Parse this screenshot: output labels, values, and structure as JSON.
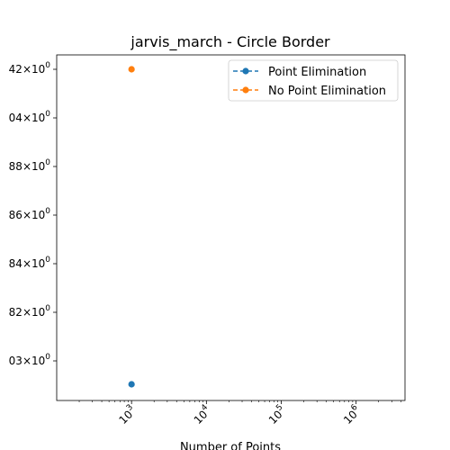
{
  "chart_data": {
    "type": "scatter",
    "title": "jarvis_march - Circle Border",
    "xlabel": "Number of Points",
    "ylabel": "",
    "x_scale": "log",
    "y_scale": "log",
    "xlim": [
      100,
      4500000
    ],
    "grid": false,
    "legend_position": "top-right",
    "x_ticks": [
      {
        "value": 1000,
        "base": "10",
        "exp": "3"
      },
      {
        "value": 10000,
        "base": "10",
        "exp": "4"
      },
      {
        "value": 100000,
        "base": "10",
        "exp": "5"
      },
      {
        "value": 1000000,
        "base": "10",
        "exp": "6"
      }
    ],
    "y_ticks": [
      {
        "label": "42",
        "mantissa_suffix": "×10",
        "exp": "0",
        "row": 0
      },
      {
        "label": "04",
        "mantissa_suffix": "×10",
        "exp": "0",
        "row": 1
      },
      {
        "label": "88",
        "mantissa_suffix": "×10",
        "exp": "0",
        "row": 2
      },
      {
        "label": "86",
        "mantissa_suffix": "×10",
        "exp": "0",
        "row": 3
      },
      {
        "label": "84",
        "mantissa_suffix": "×10",
        "exp": "0",
        "row": 4
      },
      {
        "label": "82",
        "mantissa_suffix": "×10",
        "exp": "0",
        "row": 5
      },
      {
        "label": "03",
        "mantissa_suffix": "×10",
        "exp": "0",
        "row": 6
      }
    ],
    "series": [
      {
        "name": "Point Elimination",
        "color": "#1f77b4",
        "points": [
          {
            "x": 1000,
            "y_rel": 0.05
          }
        ]
      },
      {
        "name": "No Point Elimination",
        "color": "#ff7f0e",
        "points": [
          {
            "x": 1000,
            "y_rel": 0.95
          }
        ]
      }
    ]
  }
}
